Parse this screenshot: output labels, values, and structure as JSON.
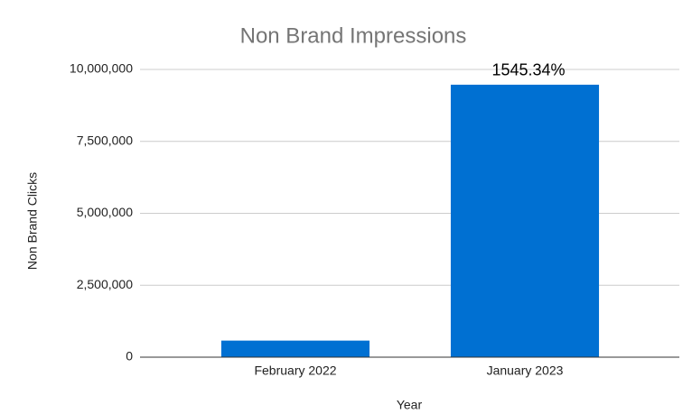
{
  "chart_data": {
    "type": "bar",
    "title": "Non Brand Impressions",
    "x_label": "Year",
    "y_label": "Non Brand Clicks",
    "categories": [
      "February 2022",
      "January 2023"
    ],
    "values": [
      576000,
      9470000
    ],
    "color": "#0070d2",
    "annotation": "1545.34%",
    "ylim": [
      0,
      10000000
    ],
    "yticks": [
      0,
      {
        "value": 2500000,
        "label": "2,500,000"
      },
      {
        "value": 5000000,
        "label": "5,000,000"
      },
      {
        "value": 7500000,
        "label": "7,500,000"
      },
      {
        "value": 10000000,
        "label": "10,000,000"
      }
    ],
    "grid": true
  }
}
